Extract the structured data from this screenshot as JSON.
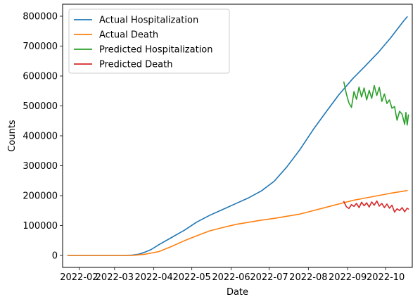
{
  "chart_data": {
    "type": "line",
    "xlabel": "Date",
    "ylabel": "Counts",
    "x_axis": {
      "start": "2022-01-19",
      "end": "2022-10-22",
      "ticks": [
        "2022-02-01",
        "2022-03-01",
        "2022-04-01",
        "2022-05-01",
        "2022-06-01",
        "2022-07-01",
        "2022-08-01",
        "2022-09-01",
        "2022-10-01"
      ],
      "tick_labels": [
        "2022-02",
        "2022-03",
        "2022-04",
        "2022-05",
        "2022-06",
        "2022-07",
        "2022-08",
        "2022-09",
        "2022-10"
      ]
    },
    "y_axis": {
      "ylim": [
        -40000,
        840000
      ],
      "ticks": [
        0,
        100000,
        200000,
        300000,
        400000,
        500000,
        600000,
        700000,
        800000
      ],
      "tick_labels": [
        "0",
        "100000",
        "200000",
        "300000",
        "400000",
        "500000",
        "600000",
        "700000",
        "800000"
      ]
    },
    "grid": false,
    "legend_position": "top-left",
    "series": [
      {
        "name": "Actual Hospitalization",
        "color": "#1f77b4",
        "points": [
          [
            "2022-01-23",
            0
          ],
          [
            "2022-02-15",
            0
          ],
          [
            "2022-03-08",
            0
          ],
          [
            "2022-03-15",
            1000
          ],
          [
            "2022-03-20",
            4000
          ],
          [
            "2022-03-25",
            11000
          ],
          [
            "2022-03-30",
            20000
          ],
          [
            "2022-04-05",
            36000
          ],
          [
            "2022-04-15",
            60000
          ],
          [
            "2022-04-25",
            84000
          ],
          [
            "2022-05-05",
            112000
          ],
          [
            "2022-05-15",
            134000
          ],
          [
            "2022-05-25",
            153000
          ],
          [
            "2022-06-05",
            174000
          ],
          [
            "2022-06-15",
            193000
          ],
          [
            "2022-06-25",
            216000
          ],
          [
            "2022-07-05",
            248000
          ],
          [
            "2022-07-15",
            296000
          ],
          [
            "2022-07-25",
            352000
          ],
          [
            "2022-08-05",
            422000
          ],
          [
            "2022-08-15",
            480000
          ],
          [
            "2022-08-25",
            537000
          ],
          [
            "2022-09-05",
            591000
          ],
          [
            "2022-09-15",
            634000
          ],
          [
            "2022-09-25",
            678000
          ],
          [
            "2022-10-05",
            728000
          ],
          [
            "2022-10-15",
            783000
          ],
          [
            "2022-10-18",
            798000
          ]
        ]
      },
      {
        "name": "Actual Death",
        "color": "#ff7f0e",
        "points": [
          [
            "2022-01-23",
            0
          ],
          [
            "2022-02-15",
            0
          ],
          [
            "2022-03-15",
            0
          ],
          [
            "2022-03-25",
            4000
          ],
          [
            "2022-04-05",
            13000
          ],
          [
            "2022-04-15",
            30000
          ],
          [
            "2022-04-25",
            49000
          ],
          [
            "2022-05-05",
            66000
          ],
          [
            "2022-05-15",
            82000
          ],
          [
            "2022-05-25",
            93000
          ],
          [
            "2022-06-05",
            104000
          ],
          [
            "2022-06-15",
            111000
          ],
          [
            "2022-06-25",
            118000
          ],
          [
            "2022-07-05",
            124000
          ],
          [
            "2022-07-15",
            131000
          ],
          [
            "2022-07-25",
            138000
          ],
          [
            "2022-08-05",
            150000
          ],
          [
            "2022-08-15",
            161000
          ],
          [
            "2022-08-25",
            172000
          ],
          [
            "2022-09-05",
            184000
          ],
          [
            "2022-09-15",
            192000
          ],
          [
            "2022-09-25",
            200000
          ],
          [
            "2022-10-05",
            208000
          ],
          [
            "2022-10-18",
            217000
          ]
        ]
      },
      {
        "name": "Predicted Hospitalization",
        "color": "#2ca02c",
        "points": [
          [
            "2022-08-29",
            580000
          ],
          [
            "2022-08-31",
            540000
          ],
          [
            "2022-09-02",
            510000
          ],
          [
            "2022-09-04",
            495000
          ],
          [
            "2022-09-06",
            548000
          ],
          [
            "2022-09-08",
            522000
          ],
          [
            "2022-09-10",
            563000
          ],
          [
            "2022-09-12",
            530000
          ],
          [
            "2022-09-14",
            560000
          ],
          [
            "2022-09-16",
            520000
          ],
          [
            "2022-09-18",
            552000
          ],
          [
            "2022-09-20",
            525000
          ],
          [
            "2022-09-22",
            568000
          ],
          [
            "2022-09-24",
            535000
          ],
          [
            "2022-09-26",
            562000
          ],
          [
            "2022-09-28",
            515000
          ],
          [
            "2022-09-30",
            540000
          ],
          [
            "2022-10-02",
            508000
          ],
          [
            "2022-10-04",
            520000
          ],
          [
            "2022-10-06",
            492000
          ],
          [
            "2022-10-08",
            498000
          ],
          [
            "2022-10-10",
            452000
          ],
          [
            "2022-10-12",
            482000
          ],
          [
            "2022-10-14",
            472000
          ],
          [
            "2022-10-16",
            438000
          ],
          [
            "2022-10-17",
            478000
          ],
          [
            "2022-10-18",
            436000
          ],
          [
            "2022-10-19",
            470000
          ]
        ]
      },
      {
        "name": "Predicted Death",
        "color": "#d62728",
        "points": [
          [
            "2022-08-29",
            180000
          ],
          [
            "2022-08-31",
            163000
          ],
          [
            "2022-09-02",
            157000
          ],
          [
            "2022-09-04",
            170000
          ],
          [
            "2022-09-06",
            164000
          ],
          [
            "2022-09-08",
            174000
          ],
          [
            "2022-09-10",
            160000
          ],
          [
            "2022-09-12",
            178000
          ],
          [
            "2022-09-14",
            166000
          ],
          [
            "2022-09-16",
            176000
          ],
          [
            "2022-09-18",
            162000
          ],
          [
            "2022-09-20",
            179000
          ],
          [
            "2022-09-22",
            168000
          ],
          [
            "2022-09-24",
            182000
          ],
          [
            "2022-09-26",
            165000
          ],
          [
            "2022-09-28",
            174000
          ],
          [
            "2022-09-30",
            160000
          ],
          [
            "2022-10-02",
            172000
          ],
          [
            "2022-10-04",
            158000
          ],
          [
            "2022-10-06",
            168000
          ],
          [
            "2022-10-08",
            145000
          ],
          [
            "2022-10-10",
            156000
          ],
          [
            "2022-10-12",
            150000
          ],
          [
            "2022-10-14",
            160000
          ],
          [
            "2022-10-16",
            146000
          ],
          [
            "2022-10-18",
            158000
          ],
          [
            "2022-10-19",
            155000
          ]
        ]
      }
    ]
  }
}
